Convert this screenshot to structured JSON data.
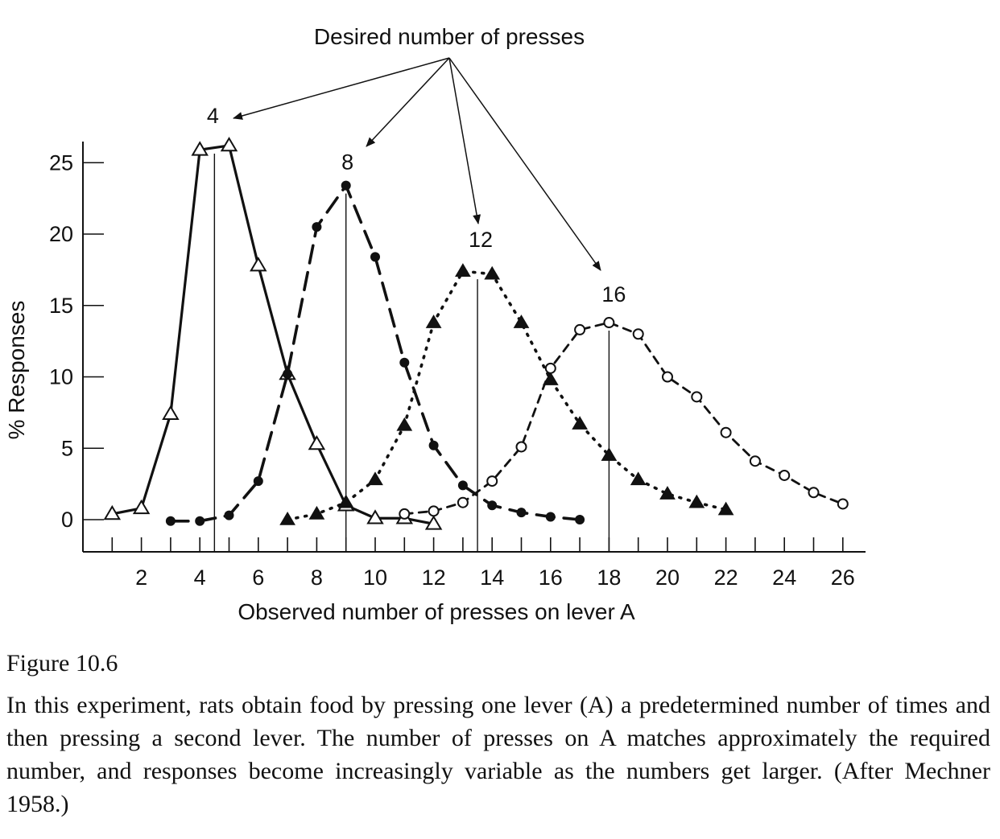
{
  "chart_data": {
    "type": "line",
    "title": "",
    "xlabel": "Observed number of presses on lever A",
    "ylabel": "% Responses",
    "xlim": [
      0,
      27
    ],
    "ylim": [
      -2.3,
      26.5
    ],
    "x_ticks": [
      2,
      4,
      6,
      8,
      10,
      12,
      14,
      16,
      18,
      20,
      22,
      24,
      26
    ],
    "y_ticks": [
      0,
      5,
      10,
      15,
      20,
      25
    ],
    "annotation": "Desired number of presses",
    "series": [
      {
        "name": "4",
        "marker": "open-triangle",
        "line": "solid",
        "target": 4.5,
        "x": [
          1,
          2,
          3,
          4,
          5,
          6,
          7,
          8,
          9,
          10,
          11,
          12
        ],
        "y": [
          0.4,
          0.8,
          7.4,
          25.9,
          26.2,
          17.8,
          10.2,
          5.3,
          1.0,
          0.1,
          0.1,
          -0.3
        ]
      },
      {
        "name": "8",
        "marker": "filled-circle",
        "line": "long-dash",
        "target": 9,
        "x": [
          3,
          4,
          5,
          6,
          7,
          8,
          9,
          10,
          11,
          12,
          13,
          14,
          15,
          16,
          17
        ],
        "y": [
          -0.1,
          -0.1,
          0.3,
          2.7,
          10.2,
          20.5,
          23.4,
          18.4,
          11.0,
          5.2,
          2.4,
          1.0,
          0.5,
          0.2,
          0.0
        ]
      },
      {
        "name": "12",
        "marker": "filled-triangle",
        "line": "dotted",
        "target": 13.5,
        "x": [
          7,
          8,
          9,
          10,
          11,
          12,
          13,
          14,
          15,
          16,
          17,
          18,
          19,
          20,
          21,
          22
        ],
        "y": [
          0.0,
          0.4,
          1.2,
          2.8,
          6.6,
          13.8,
          17.4,
          17.2,
          13.8,
          9.8,
          6.7,
          4.5,
          2.8,
          1.8,
          1.2,
          0.7
        ]
      },
      {
        "name": "16",
        "marker": "open-circle",
        "line": "short-dash",
        "target": 18,
        "x": [
          11,
          12,
          13,
          14,
          15,
          16,
          17,
          18,
          19,
          20,
          21,
          22,
          23,
          24,
          25,
          26
        ],
        "y": [
          0.4,
          0.6,
          1.2,
          2.7,
          5.1,
          10.6,
          13.3,
          13.8,
          13.0,
          10.0,
          8.6,
          6.1,
          4.1,
          3.1,
          1.9,
          1.1
        ]
      }
    ]
  },
  "caption": {
    "title": "Figure 10.6",
    "body": "In this experiment, rats obtain food by pressing one lever (A) a predetermined number of times and then pressing a second lever. The number of presses on A matches approximately the required number, and responses become increasingly variable as the numbers get larger. (After Mechner 1958.)"
  }
}
